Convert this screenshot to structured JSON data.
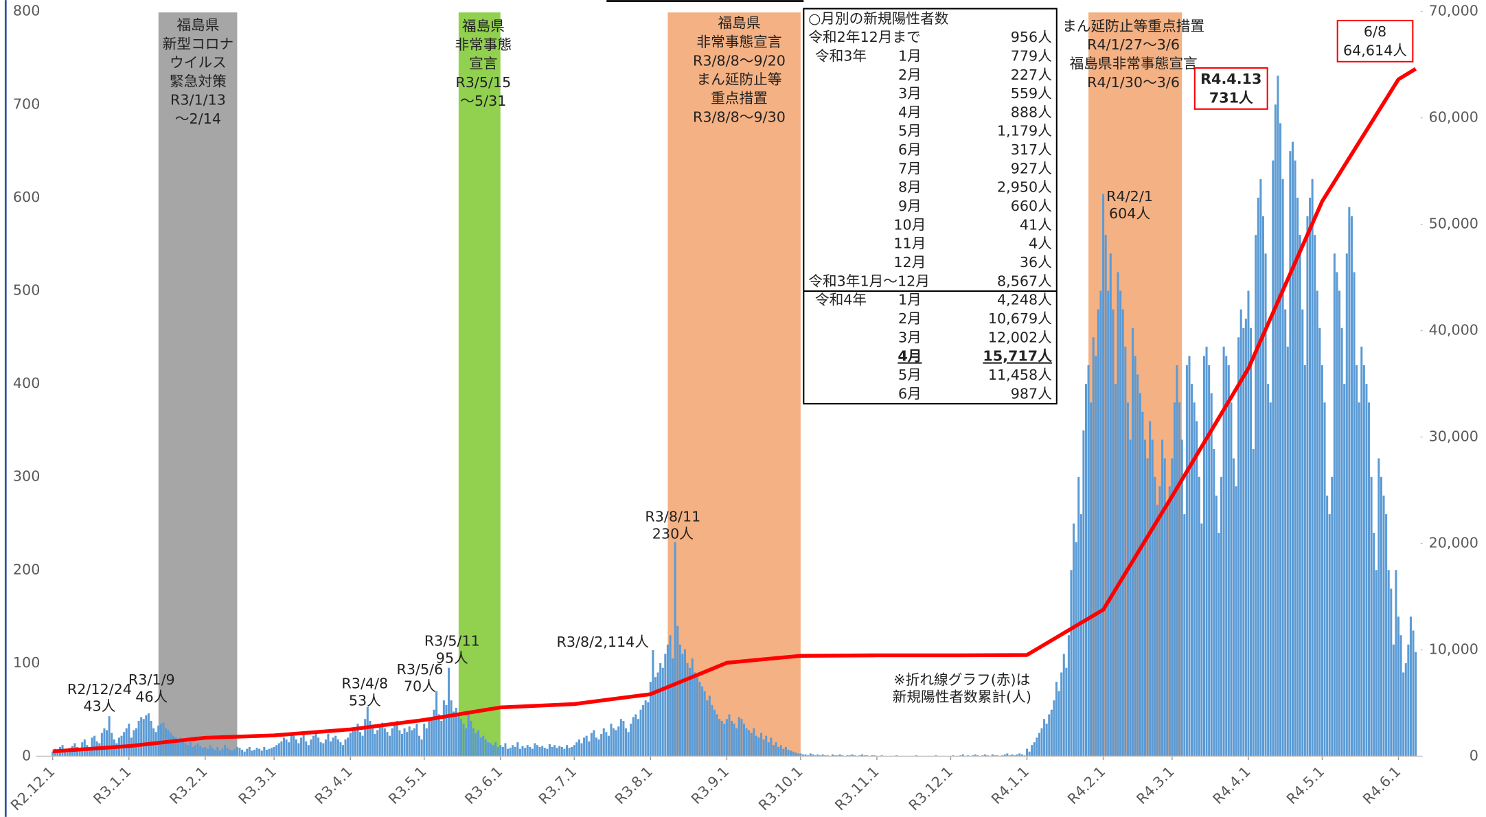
{
  "chart_data": {
    "type": "bar",
    "xlim": [
      -6,
      556
    ],
    "xticks": [
      {
        "value": 0,
        "label": "R2.12.1"
      },
      {
        "value": 31,
        "label": "R3.1.1"
      },
      {
        "value": 62,
        "label": "R3.2.1"
      },
      {
        "value": 90,
        "label": "R3.3.1"
      },
      {
        "value": 121,
        "label": "R3.4.1"
      },
      {
        "value": 151,
        "label": "R3.5.1"
      },
      {
        "value": 182,
        "label": "R3.6.1"
      },
      {
        "value": 212,
        "label": "R3.7.1"
      },
      {
        "value": 243,
        "label": "R3.8.1"
      },
      {
        "value": 274,
        "label": "R3.9.1"
      },
      {
        "value": 304,
        "label": "R3.10.1"
      },
      {
        "value": 335,
        "label": "R3.11.1"
      },
      {
        "value": 365,
        "label": "R3.12.1"
      },
      {
        "value": 396,
        "label": "R4.1.1"
      },
      {
        "value": 427,
        "label": "R4.2.1"
      },
      {
        "value": 455,
        "label": "R4.3.1"
      },
      {
        "value": 486,
        "label": "R4.4.1"
      },
      {
        "value": 516,
        "label": "R4.5.1"
      },
      {
        "value": 547,
        "label": "R4.6.1"
      }
    ],
    "ylim": [
      0,
      800
    ],
    "yticks": [
      0,
      100,
      200,
      300,
      400,
      500,
      600,
      700,
      800
    ],
    "y2lim": [
      0,
      70000
    ],
    "y2ticks": [
      0,
      {
        "value": 10000,
        "label": "10,000"
      },
      {
        "value": 20000,
        "label": "20,000"
      },
      {
        "value": 30000,
        "label": "30,000"
      },
      {
        "value": 40000,
        "label": "40,000"
      },
      {
        "value": 50000,
        "label": "50,000"
      },
      {
        "value": 60000,
        "label": "60,000"
      },
      {
        "value": 70000,
        "label": "70,000"
      }
    ],
    "series": [
      {
        "type": "bar",
        "color": "#5b9bd5",
        "values": [
          5,
          8,
          6,
          10,
          12,
          7,
          4,
          9,
          11,
          14,
          10,
          8,
          15,
          18,
          12,
          9,
          20,
          22,
          16,
          14,
          25,
          30,
          28,
          43,
          25,
          18,
          14,
          20,
          22,
          26,
          30,
          35,
          20,
          28,
          30,
          38,
          42,
          40,
          44,
          46,
          38,
          30,
          26,
          33,
          35,
          36,
          30,
          28,
          25,
          22,
          20,
          18,
          20,
          16,
          14,
          12,
          15,
          10,
          12,
          14,
          11,
          9,
          10,
          8,
          12,
          9,
          7,
          10,
          6,
          8,
          12,
          9,
          7,
          6,
          8,
          10,
          9,
          7,
          5,
          8,
          10,
          6,
          7,
          9,
          8,
          6,
          10,
          7,
          8,
          9,
          10,
          12,
          14,
          16,
          20,
          18,
          15,
          25,
          22,
          18,
          14,
          20,
          24,
          16,
          12,
          18,
          22,
          26,
          20,
          15,
          14,
          18,
          24,
          16,
          20,
          22,
          18,
          15,
          12,
          18,
          20,
          25,
          30,
          28,
          35,
          26,
          22,
          40,
          53,
          38,
          30,
          24,
          28,
          32,
          36,
          30,
          26,
          22,
          30,
          34,
          38,
          28,
          24,
          30,
          26,
          32,
          28,
          30,
          35,
          22,
          18,
          35,
          30,
          40,
          42,
          50,
          70,
          45,
          38,
          60,
          55,
          95,
          60,
          48,
          52,
          46,
          40,
          35,
          30,
          45,
          38,
          30,
          25,
          28,
          20,
          22,
          18,
          15,
          14,
          12,
          15,
          10,
          12,
          10,
          14,
          8,
          9,
          12,
          10,
          15,
          8,
          11,
          9,
          12,
          10,
          8,
          14,
          12,
          10,
          11,
          9,
          8,
          13,
          10,
          12,
          9,
          11,
          10,
          8,
          12,
          9,
          10,
          12,
          15,
          18,
          14,
          20,
          22,
          16,
          25,
          28,
          20,
          18,
          24,
          30,
          26,
          22,
          35,
          30,
          28,
          32,
          40,
          38,
          30,
          26,
          35,
          42,
          45,
          40,
          50,
          55,
          60,
          58,
          80,
          114,
          85,
          90,
          100,
          95,
          110,
          120,
          130,
          105,
          230,
          140,
          120,
          110,
          115,
          100,
          95,
          105,
          90,
          85,
          80,
          75,
          70,
          60,
          65,
          55,
          50,
          45,
          40,
          38,
          35,
          40,
          45,
          38,
          35,
          30,
          42,
          40,
          35,
          30,
          28,
          25,
          30,
          22,
          20,
          25,
          18,
          22,
          15,
          20,
          12,
          15,
          10,
          12,
          8,
          10,
          7,
          6,
          5,
          4,
          3,
          3,
          2,
          2,
          1,
          3,
          2,
          1,
          2,
          1,
          2,
          1,
          1,
          0,
          2,
          1,
          1,
          2,
          1,
          0,
          1,
          1,
          2,
          1,
          0,
          1,
          2,
          1,
          1,
          0,
          1,
          1,
          0,
          0,
          1,
          0,
          0,
          0,
          0,
          0,
          1,
          0,
          0,
          0,
          0,
          0,
          0,
          0,
          1,
          0,
          0,
          0,
          0,
          0,
          0,
          0,
          1,
          0,
          0,
          0,
          0,
          0,
          0,
          1,
          0,
          0,
          1,
          2,
          0,
          1,
          0,
          1,
          2,
          1,
          0,
          1,
          2,
          1,
          0,
          2,
          1,
          1,
          0,
          1,
          2,
          3,
          1,
          2,
          1,
          2,
          3,
          2,
          1,
          8,
          5,
          12,
          15,
          20,
          25,
          30,
          40,
          35,
          45,
          50,
          60,
          80,
          70,
          90,
          110,
          95,
          130,
          200,
          250,
          230,
          300,
          260,
          350,
          400,
          420,
          380,
          450,
          430,
          480,
          500,
          604,
          560,
          500,
          540,
          480,
          400,
          520,
          500,
          480,
          440,
          380,
          340,
          460,
          430,
          410,
          390,
          370,
          340,
          320,
          360,
          340,
          300,
          270,
          290,
          340,
          320,
          270,
          290,
          320,
          380,
          420,
          380,
          340,
          260,
          420,
          430,
          400,
          380,
          360,
          300,
          250,
          430,
          440,
          420,
          390,
          330,
          280,
          240,
          300,
          440,
          430,
          420,
          380,
          320,
          290,
          450,
          480,
          460,
          470,
          500,
          460,
          330,
          560,
          600,
          620,
          580,
          540,
          400,
          380,
          640,
          700,
          731,
          680,
          620,
          480,
          440,
          650,
          660,
          640,
          600,
          560,
          480,
          420,
          580,
          600,
          620,
          560,
          500,
          460,
          420,
          380,
          280,
          260,
          300,
          540,
          520,
          500,
          460,
          400,
          540,
          590,
          580,
          520,
          420,
          380,
          440,
          420,
          400,
          380,
          300,
          240,
          200,
          320,
          300,
          280,
          260,
          200,
          180,
          120,
          200,
          150,
          130,
          90,
          100,
          120,
          150,
          135,
          112
        ]
      },
      {
        "type": "line",
        "axis": "y2",
        "color": "#ff0000",
        "x": [
          0,
          31,
          62,
          90,
          121,
          151,
          182,
          212,
          243,
          274,
          304,
          335,
          365,
          396,
          427,
          455,
          486,
          516,
          547,
          554
        ],
        "values": [
          450,
          956,
          1735,
          1962,
          2521,
          3409,
          4588,
          4905,
          5832,
          8782,
          9442,
          9483,
          9487,
          9523,
          13771,
          24450,
          36452,
          52169,
          63627,
          64614
        ]
      }
    ],
    "bands": [
      {
        "start": 43,
        "end": 75,
        "color": "#a6a6a6",
        "lines": [
          "福島県",
          "新型コロナ",
          "ウイルス",
          "緊急対策",
          "R3/1/13",
          "～2/14"
        ]
      },
      {
        "start": 165,
        "end": 182,
        "color": "#92d050",
        "lines": [
          "福島県",
          "非常事態",
          "宣言",
          "R3/5/15",
          "～5/31"
        ]
      },
      {
        "start": 250,
        "end": 304,
        "color": "#f4b183",
        "lines": [
          "福島県",
          "非常事態宣言",
          "R3/8/8～9/20",
          "まん延防止等",
          "重点措置",
          "R3/8/8～9/30"
        ]
      },
      {
        "start": 421,
        "end": 459,
        "color": "#f4b183",
        "lines": [
          "まん延防止等重点措置",
          "R4/1/27～3/6",
          "福島県非常事態宣言",
          "R4/1/30～3/6"
        ]
      }
    ],
    "annotations": [
      {
        "lines": [
          "R2/12/24",
          "43人"
        ]
      },
      {
        "lines": [
          "R3/1/9",
          "46人"
        ]
      },
      {
        "lines": [
          "R3/4/8",
          "53人"
        ]
      },
      {
        "lines": [
          "R3/5/6",
          "70人"
        ]
      },
      {
        "lines": [
          "R3/5/11",
          "95人"
        ]
      },
      {
        "lines": [
          "R3/8/2,114人"
        ]
      },
      {
        "lines": [
          "R3/8/11",
          "230人"
        ]
      },
      {
        "lines": [
          "R4/2/1",
          "604人"
        ]
      },
      {
        "lines": [
          "※折れ線グラフ(赤)は",
          "新規陽性者数累計(人)"
        ],
        "color": "#ff0000"
      },
      {
        "lines": [
          "R4.4.13",
          "731人"
        ],
        "color": "#ff0000",
        "box": true,
        "bold": true
      },
      {
        "lines": [
          "6/8",
          "64,614人"
        ],
        "color": "#ff0000",
        "box": true
      }
    ],
    "table": {
      "title": "○月別の新規陽性者数",
      "rows": [
        {
          "label": "令和2年12月まで",
          "count": "956人"
        },
        {
          "label": "令和3年",
          "month": "1月",
          "count": "779人"
        },
        {
          "month": "2月",
          "count": "227人"
        },
        {
          "month": "3月",
          "count": "559人"
        },
        {
          "month": "4月",
          "count": "888人"
        },
        {
          "month": "5月",
          "count": "1,179人"
        },
        {
          "month": "6月",
          "count": "317人"
        },
        {
          "month": "7月",
          "count": "927人"
        },
        {
          "month": "8月",
          "count": "2,950人"
        },
        {
          "month": "9月",
          "count": "660人"
        },
        {
          "month": "10月",
          "count": "41人"
        },
        {
          "month": "11月",
          "count": "4人"
        },
        {
          "month": "12月",
          "count": "36人"
        },
        {
          "label": "令和3年1月～12月",
          "count": "8,567人",
          "small": true
        },
        {
          "label": "令和4年",
          "month": "1月",
          "count": "4,248人"
        },
        {
          "month": "2月",
          "count": "10,679人"
        },
        {
          "month": "3月",
          "count": "12,002人"
        },
        {
          "month": "4月",
          "count": "15,717人",
          "highlight": true
        },
        {
          "month": "5月",
          "count": "11,458人"
        },
        {
          "month": "6月",
          "count": "987人"
        }
      ]
    }
  }
}
